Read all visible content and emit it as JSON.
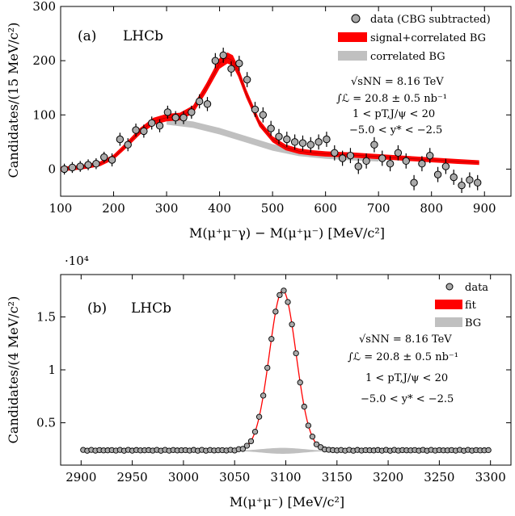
{
  "chart_data": [
    {
      "type": "scatter",
      "panel_label": "(a)",
      "experiment": "LHCb",
      "ylabel": "Candidates/(15 MeV/c²)",
      "xlabel": "M(μ⁺μ⁻γ) − M(μ⁺μ⁻) [MeV/c²]",
      "xlim": [
        100,
        950
      ],
      "ylim": [
        -50,
        300
      ],
      "x_ticks": [
        "100",
        "200",
        "300",
        "400",
        "500",
        "600",
        "700",
        "800",
        "900"
      ],
      "y_ticks": [
        "0",
        "100",
        "200",
        "300"
      ],
      "legend": {
        "placement": "top-right",
        "entries": [
          "data (CBG subtracted)",
          "signal+correlated BG",
          "correlated BG"
        ]
      },
      "info_lines": [
        "√sNN = 8.16 TeV",
        "∫ℒ = 20.8 ± 0.5 nb⁻¹",
        "1 < pT,J/ψ < 20",
        "−5.0 < y* < −2.5"
      ],
      "series": [
        {
          "name": "data (CBG subtracted)",
          "x": [
            107,
            122,
            137,
            152,
            167,
            182,
            197,
            212,
            227,
            242,
            257,
            272,
            287,
            302,
            317,
            332,
            347,
            362,
            377,
            392,
            407,
            422,
            437,
            452,
            467,
            482,
            497,
            512,
            527,
            542,
            557,
            572,
            587,
            602,
            617,
            632,
            647,
            662,
            677,
            692,
            707,
            722,
            737,
            752,
            767,
            782,
            797,
            812,
            827,
            842,
            857,
            872,
            887
          ],
          "y": [
            0,
            3,
            5,
            8,
            10,
            22,
            17,
            55,
            45,
            72,
            70,
            85,
            80,
            105,
            95,
            95,
            105,
            125,
            120,
            200,
            210,
            185,
            195,
            165,
            110,
            100,
            75,
            60,
            55,
            50,
            48,
            45,
            50,
            55,
            30,
            20,
            25,
            5,
            15,
            45,
            20,
            10,
            30,
            15,
            -25,
            10,
            25,
            -10,
            5,
            -15,
            -30,
            -20,
            -25
          ],
          "y_err": [
            10,
            10,
            10,
            10,
            10,
            10,
            12,
            12,
            12,
            12,
            12,
            12,
            12,
            12,
            12,
            12,
            12,
            13,
            13,
            14,
            14,
            14,
            14,
            14,
            14,
            14,
            14,
            14,
            14,
            14,
            14,
            14,
            14,
            14,
            14,
            14,
            14,
            14,
            14,
            14,
            14,
            14,
            14,
            14,
            14,
            14,
            14,
            14,
            14,
            14,
            14,
            14,
            14
          ]
        },
        {
          "name": "signal+correlated BG",
          "x": [
            100,
            125,
            150,
            175,
            200,
            225,
            250,
            275,
            300,
            325,
            350,
            375,
            400,
            415,
            425,
            435,
            450,
            475,
            500,
            525,
            550,
            575,
            600,
            625,
            650,
            700,
            750,
            800,
            850,
            890
          ],
          "y": [
            0,
            2,
            5,
            10,
            22,
            45,
            70,
            88,
            95,
            97,
            110,
            150,
            195,
            205,
            200,
            180,
            140,
            85,
            55,
            40,
            33,
            30,
            28,
            27,
            26,
            23,
            20,
            17,
            14,
            12
          ]
        },
        {
          "name": "correlated BG",
          "x": [
            300,
            350,
            400,
            450,
            500,
            550,
            600,
            650,
            700
          ],
          "y": [
            88,
            82,
            70,
            55,
            40,
            30,
            25,
            22,
            20
          ]
        }
      ]
    },
    {
      "type": "scatter",
      "panel_label": "(b)",
      "experiment": "LHCb",
      "y_multiplier": "·10⁴",
      "ylabel": "Candidates/(4 MeV/c²)",
      "xlabel": "M(μ⁺μ⁻) [MeV/c²]",
      "xlim": [
        2880,
        3320
      ],
      "ylim": [
        0.1,
        1.9
      ],
      "x_ticks": [
        "2900",
        "2950",
        "3000",
        "3050",
        "3100",
        "3150",
        "3200",
        "3250",
        "3300"
      ],
      "y_ticks": [
        "0.5",
        "1",
        "1.5"
      ],
      "legend": {
        "placement": "top-right",
        "entries": [
          "data",
          "fit",
          "BG"
        ]
      },
      "info_lines": [
        "√sNN = 8.16 TeV",
        "∫ℒ = 20.8 ± 0.5 nb⁻¹",
        "1 < pT,J/ψ < 20",
        "−5.0 < y* < −2.5"
      ],
      "baseline": 0.24,
      "peak": {
        "mean": 3097,
        "sigma": 13,
        "amplitude": 1.51
      }
    }
  ]
}
